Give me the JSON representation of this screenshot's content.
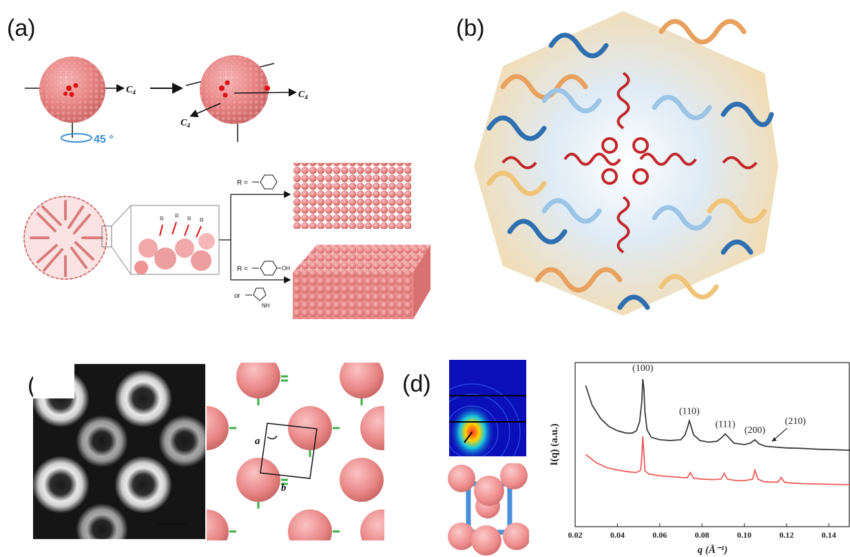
{
  "figure": {
    "panel_labels": [
      "(a)",
      "(b)",
      "(c)",
      "(d)"
    ]
  },
  "panel_a": {
    "axis_c4": "C",
    "axis_c4_sub": "4",
    "rotation_label": "45 °",
    "r_equals": "R =",
    "or_label": "or",
    "oh_label": "OH",
    "nh_label": "NH",
    "residue_marker": "R"
  },
  "panel_c": {
    "lattice_a": "a",
    "lattice_b": "b"
  },
  "chart_data": {
    "type": "line",
    "xlabel": "q (Å⁻¹)",
    "ylabel": "I(q) (a.u.)",
    "xlim": [
      0.02,
      0.15
    ],
    "x_ticks": [
      "0.02",
      "0.04",
      "0.06",
      "0.08",
      "0.10",
      "0.12",
      "0.14"
    ],
    "peak_labels": [
      {
        "text": "(100)",
        "q": 0.052
      },
      {
        "text": "(110)",
        "q": 0.074
      },
      {
        "text": "(111)",
        "q": 0.091
      },
      {
        "text": "(200)",
        "q": 0.105
      },
      {
        "text": "(210)",
        "q": 0.117
      }
    ],
    "series": [
      {
        "color": "#3a3a3a",
        "x": [
          0.025,
          0.028,
          0.032,
          0.036,
          0.04,
          0.044,
          0.047,
          0.049,
          0.0505,
          0.0515,
          0.052,
          0.0525,
          0.053,
          0.054,
          0.056,
          0.06,
          0.065,
          0.07,
          0.072,
          0.0735,
          0.074,
          0.0745,
          0.076,
          0.079,
          0.083,
          0.087,
          0.0895,
          0.091,
          0.0925,
          0.095,
          0.1,
          0.103,
          0.105,
          0.107,
          0.11,
          0.115,
          0.12,
          0.125,
          0.13,
          0.135,
          0.14,
          0.145,
          0.15
        ],
        "y": [
          0.86,
          0.74,
          0.66,
          0.61,
          0.585,
          0.57,
          0.57,
          0.585,
          0.64,
          0.76,
          0.9,
          0.84,
          0.7,
          0.59,
          0.545,
          0.53,
          0.525,
          0.53,
          0.56,
          0.62,
          0.645,
          0.625,
          0.56,
          0.525,
          0.515,
          0.52,
          0.545,
          0.565,
          0.545,
          0.51,
          0.5,
          0.51,
          0.53,
          0.505,
          0.49,
          0.485,
          0.48,
          0.478,
          0.475,
          0.472,
          0.47,
          0.468,
          0.466
        ]
      },
      {
        "color": "#ef5a5a",
        "x": [
          0.025,
          0.03,
          0.035,
          0.04,
          0.045,
          0.049,
          0.051,
          0.0515,
          0.052,
          0.0525,
          0.053,
          0.055,
          0.06,
          0.065,
          0.07,
          0.073,
          0.0745,
          0.076,
          0.08,
          0.085,
          0.089,
          0.0905,
          0.092,
          0.095,
          0.1,
          0.104,
          0.105,
          0.1065,
          0.109,
          0.112,
          0.116,
          0.1175,
          0.119,
          0.122,
          0.128,
          0.135,
          0.142,
          0.15
        ],
        "y": [
          0.44,
          0.39,
          0.36,
          0.345,
          0.335,
          0.33,
          0.345,
          0.42,
          0.55,
          0.45,
          0.34,
          0.32,
          0.31,
          0.305,
          0.3,
          0.298,
          0.33,
          0.295,
          0.29,
          0.287,
          0.29,
          0.325,
          0.29,
          0.283,
          0.28,
          0.29,
          0.345,
          0.29,
          0.275,
          0.272,
          0.272,
          0.3,
          0.27,
          0.266,
          0.262,
          0.26,
          0.258,
          0.256
        ]
      }
    ]
  }
}
